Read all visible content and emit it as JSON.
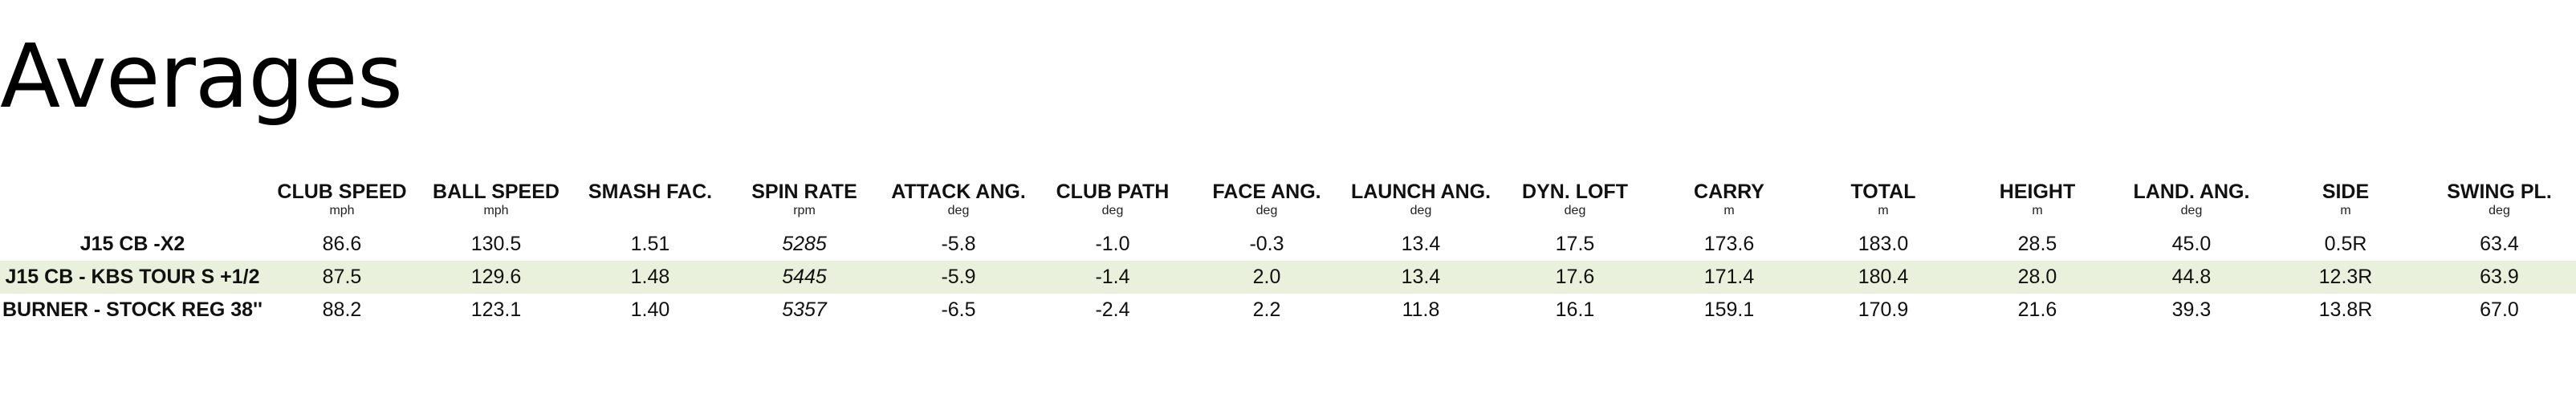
{
  "title": "Averages",
  "columns": [
    {
      "label": "CLUB SPEED",
      "unit": "mph"
    },
    {
      "label": "BALL SPEED",
      "unit": "mph"
    },
    {
      "label": "SMASH FAC.",
      "unit": ""
    },
    {
      "label": "SPIN RATE",
      "unit": "rpm"
    },
    {
      "label": "ATTACK ANG.",
      "unit": "deg"
    },
    {
      "label": "CLUB PATH",
      "unit": "deg"
    },
    {
      "label": "FACE ANG.",
      "unit": "deg"
    },
    {
      "label": "LAUNCH ANG.",
      "unit": "deg"
    },
    {
      "label": "DYN. LOFT",
      "unit": "deg"
    },
    {
      "label": "CARRY",
      "unit": "m"
    },
    {
      "label": "TOTAL",
      "unit": "m"
    },
    {
      "label": "HEIGHT",
      "unit": "m"
    },
    {
      "label": "LAND. ANG.",
      "unit": "deg"
    },
    {
      "label": "SIDE",
      "unit": "m"
    },
    {
      "label": "SWING PL.",
      "unit": "deg"
    }
  ],
  "rows": [
    {
      "club": "J15 CB -X2",
      "values": [
        "86.6",
        "130.5",
        "1.51",
        "5285",
        "-5.8",
        "-1.0",
        "-0.3",
        "13.4",
        "17.5",
        "173.6",
        "183.0",
        "28.5",
        "45.0",
        "0.5R",
        "63.4"
      ]
    },
    {
      "club": "J15 CB - KBS TOUR S +1/2",
      "values": [
        "87.5",
        "129.6",
        "1.48",
        "5445",
        "-5.9",
        "-1.4",
        "2.0",
        "13.4",
        "17.6",
        "171.4",
        "180.4",
        "28.0",
        "44.8",
        "12.3R",
        "63.9"
      ]
    },
    {
      "club": "BURNER - STOCK REG 38''",
      "values": [
        "88.2",
        "123.1",
        "1.40",
        "5357",
        "-6.5",
        "-2.4",
        "2.2",
        "11.8",
        "16.1",
        "159.1",
        "170.9",
        "21.6",
        "39.3",
        "13.8R",
        "67.0"
      ]
    }
  ]
}
